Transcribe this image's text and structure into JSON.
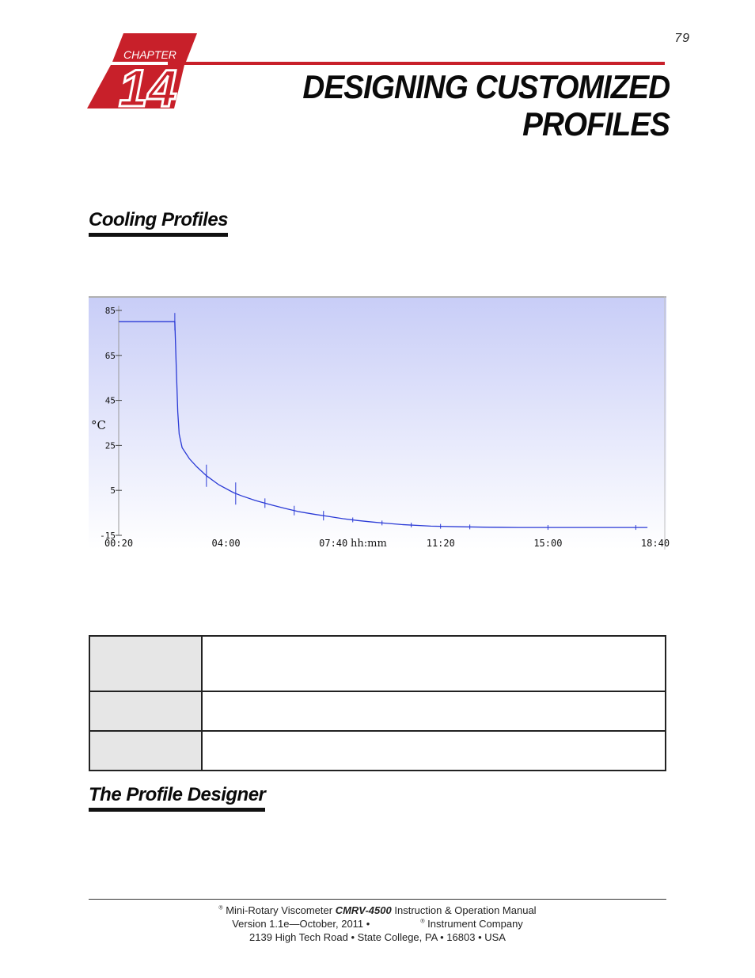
{
  "page_number": "79",
  "chapter": {
    "label": "CHAPTER",
    "number": "14"
  },
  "title": {
    "line1": "DESIGNING CUSTOMIZED",
    "line2": "PROFILES"
  },
  "sections": {
    "cooling": "Cooling Profiles",
    "designer": "The Profile Designer"
  },
  "colors": {
    "accent": "#c8202a",
    "chart_line": "#2a3ad6",
    "chart_bg_top": "#c8cdf7",
    "chart_bg_bottom": "#ffffff",
    "table_label_bg": "#e6e6e6"
  },
  "chart_data": {
    "type": "line",
    "title": "",
    "xlabel": "hh:mm",
    "ylabel": "°C",
    "x_ticks": [
      "00:20",
      "04:00",
      "07:40",
      "11:20",
      "15:00",
      "18:40"
    ],
    "y_ticks": [
      "85",
      "65",
      "45",
      "25",
      "5",
      "-15"
    ],
    "xlim_hours": [
      0.333,
      18.667
    ],
    "ylim": [
      -15,
      85
    ],
    "grid": false,
    "series": [
      {
        "name": "",
        "points": [
          [
            0.333,
            80
          ],
          [
            2.25,
            80
          ],
          [
            2.3,
            60
          ],
          [
            2.35,
            40
          ],
          [
            2.4,
            30
          ],
          [
            2.5,
            24
          ],
          [
            2.75,
            19
          ],
          [
            3.0,
            15.5
          ],
          [
            3.33,
            11.5
          ],
          [
            3.75,
            7.5
          ],
          [
            4.25,
            4
          ],
          [
            4.5,
            2.7
          ],
          [
            5.0,
            0.5
          ],
          [
            5.5,
            -1.3
          ],
          [
            6.0,
            -3
          ],
          [
            6.5,
            -4.5
          ],
          [
            7.0,
            -5.6
          ],
          [
            7.5,
            -6.6
          ],
          [
            8.0,
            -7.6
          ],
          [
            8.5,
            -8.4
          ],
          [
            9.0,
            -9.1
          ],
          [
            9.5,
            -9.7
          ],
          [
            10.0,
            -10.2
          ],
          [
            11.0,
            -10.9
          ],
          [
            12.0,
            -11.2
          ],
          [
            13.0,
            -11.4
          ],
          [
            14.0,
            -11.5
          ],
          [
            16.0,
            -11.5
          ],
          [
            18.0,
            -11.5
          ],
          [
            18.4,
            -11.5
          ]
        ]
      }
    ],
    "markers_hours": [
      2.25,
      3.33,
      4.33,
      5.33,
      6.33,
      7.33,
      8.33,
      9.33,
      10.33,
      11.33,
      12.33,
      15.0,
      18.0
    ]
  },
  "table": {
    "rows": [
      {
        "label": "",
        "text": ""
      },
      {
        "label": "",
        "text": ""
      },
      {
        "label": "",
        "text": ""
      }
    ]
  },
  "footer": {
    "reg_mark": "®",
    "line1_prefix": "Mini-Rotary Viscometer",
    "model": "CMRV-4500",
    "line1_suffix": "Instruction & Operation Manual",
    "line2_prefix": "Version 1.1e—October, 2011 •",
    "line2_suffix": "Instrument Company",
    "line3": "2139 High Tech Road • State College, PA • 16803 • USA"
  }
}
